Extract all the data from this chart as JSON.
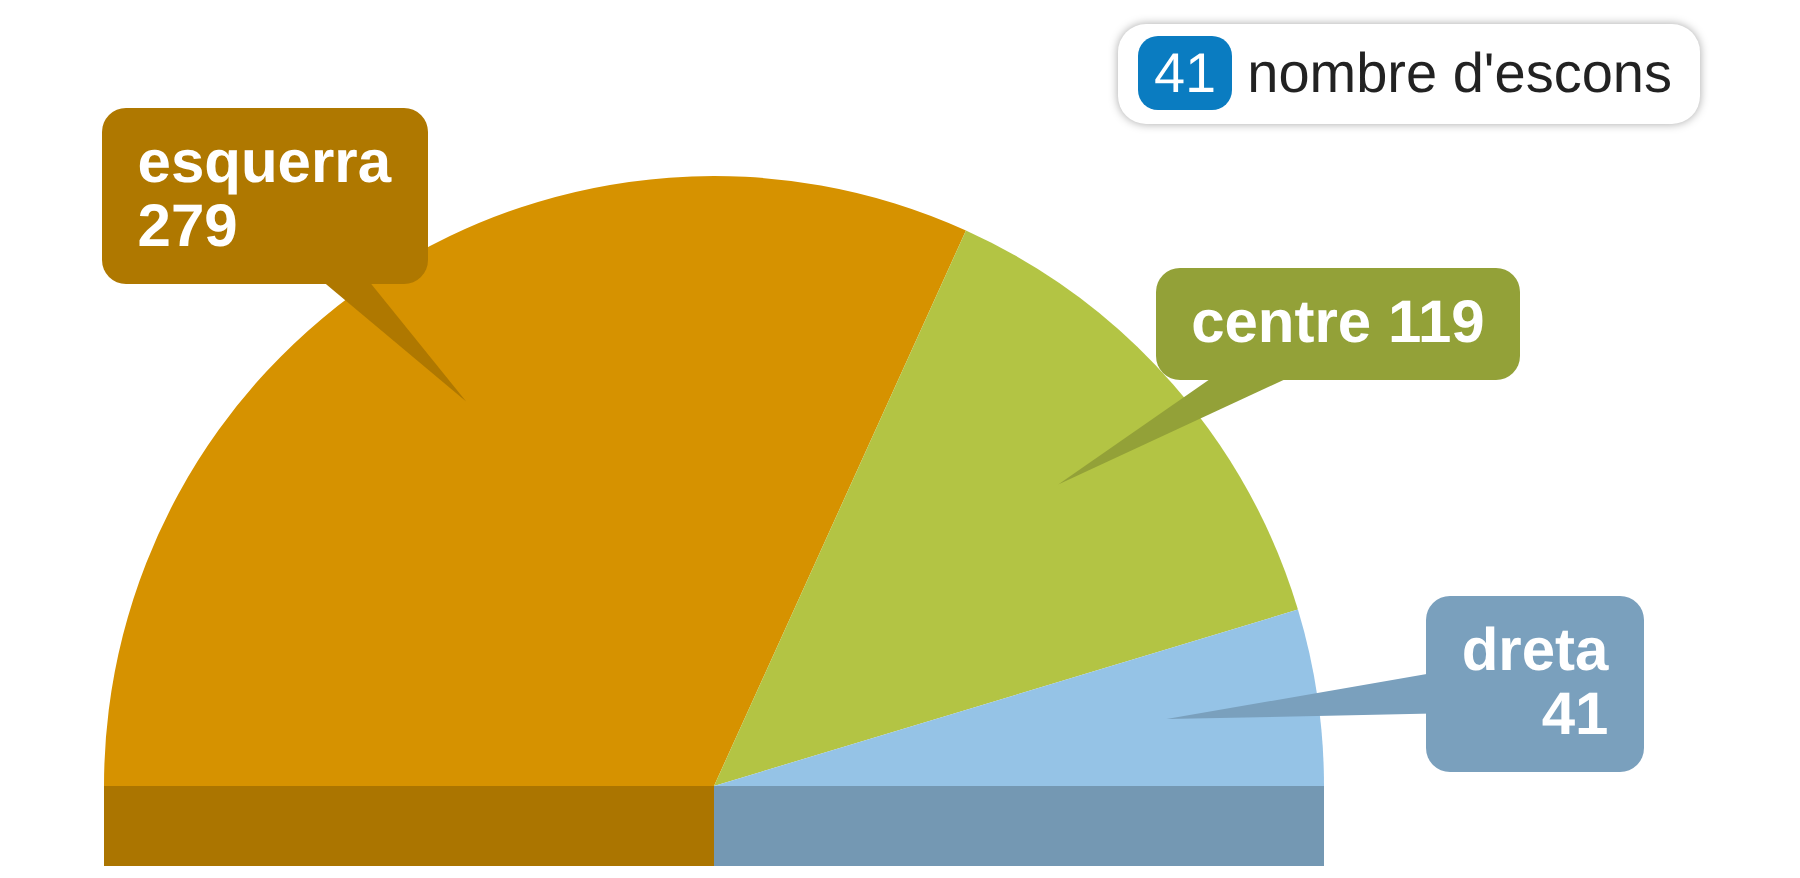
{
  "chart_data": {
    "type": "pie",
    "categories": [
      "esquerra",
      "centre",
      "dreta"
    ],
    "values": [
      279,
      119,
      41
    ],
    "colors": [
      "#d69200",
      "#b3c444",
      "#95c3e6"
    ],
    "data_labels": true,
    "annotations": [
      "41 nombre d'escons"
    ]
  }
}
